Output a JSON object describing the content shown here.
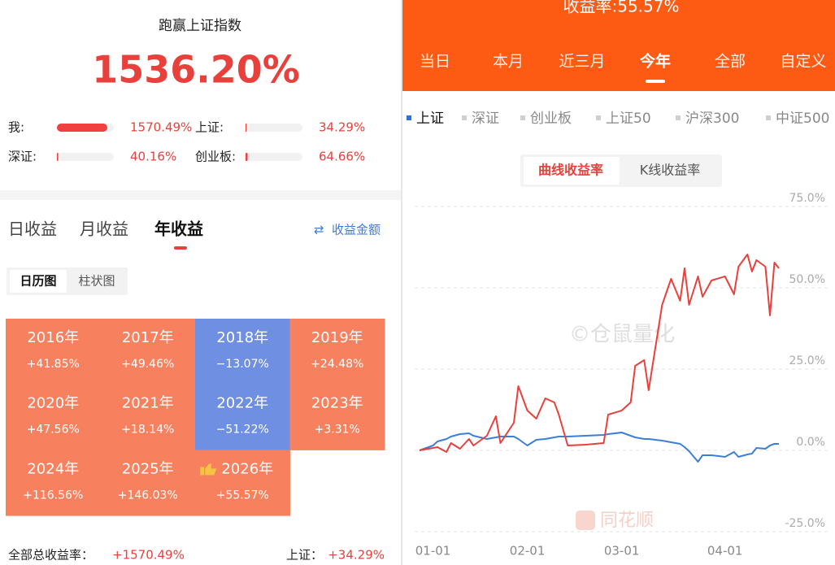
{
  "left": {
    "title": "跑赢上证指数",
    "excess": "1536.20%",
    "comparison": [
      {
        "label": "我:",
        "value": 1570.49,
        "value_label": "1570.49%"
      },
      {
        "label": "上证:",
        "value": 34.29,
        "value_label": "34.29%"
      },
      {
        "label": "深证:",
        "value": 40.16,
        "value_label": "40.16%"
      },
      {
        "label": "创业板:",
        "value": 64.66,
        "value_label": "64.66%"
      }
    ],
    "tabs": [
      "日收益",
      "月收益",
      "年收益"
    ],
    "active_tab": 2,
    "amount_link": "收益金额",
    "views": [
      "日历图",
      "柱状图"
    ],
    "active_view": 0,
    "years": [
      {
        "year": "2016年",
        "value": 41.85,
        "label": "+41.85%"
      },
      {
        "year": "2017年",
        "value": 49.46,
        "label": "+49.46%"
      },
      {
        "year": "2018年",
        "value": -13.07,
        "label": "−13.07%"
      },
      {
        "year": "2019年",
        "value": 24.48,
        "label": "+24.48%"
      },
      {
        "year": "2020年",
        "value": 47.56,
        "label": "+47.56%"
      },
      {
        "year": "2021年",
        "value": 18.14,
        "label": "+18.14%"
      },
      {
        "year": "2022年",
        "value": -51.22,
        "label": "−51.22%"
      },
      {
        "year": "2023年",
        "value": 3.31,
        "label": "+3.31%"
      },
      {
        "year": "2024年",
        "value": 116.56,
        "label": "+116.56%"
      },
      {
        "year": "2025年",
        "value": 146.03,
        "label": "+146.03%"
      },
      {
        "year": "2026年",
        "value": 55.57,
        "label": "+55.57%"
      }
    ],
    "footer": {
      "total_label": "全部总收益率：",
      "total": "+1570.49%",
      "index_label": "上证：",
      "index": "+34.29%"
    }
  },
  "right": {
    "header": "收益率:55.57%",
    "periods": [
      "当日",
      "本月",
      "近三月",
      "今年",
      "全部",
      "自定义"
    ],
    "active_period": 3,
    "indices": [
      "上证",
      "深证",
      "创业板",
      "上证50",
      "沪深300",
      "中证500"
    ],
    "active_index": 0,
    "modes": [
      "曲线收益率",
      "K线收益率"
    ],
    "active_mode": 0,
    "watermark": "©仓鼠量化",
    "logo": "同花顺"
  },
  "chart_data": {
    "type": "line",
    "x": [
      0,
      3,
      4,
      6,
      7,
      9,
      11,
      12,
      15,
      17,
      18,
      21,
      22,
      24,
      26,
      28,
      30,
      31,
      33,
      37,
      41,
      42,
      45,
      47,
      48,
      50,
      51,
      54,
      56,
      58,
      59,
      60,
      62,
      63,
      65,
      68,
      70,
      71,
      73,
      74,
      75,
      77,
      78,
      79,
      80
    ],
    "series": [
      {
        "color": "#e8413c",
        "values": [
          0,
          0.75,
          1,
          -0.5,
          2.25,
          0.5,
          3.5,
          1.5,
          4.5,
          10.5,
          2.25,
          8.5,
          19.75,
          12.25,
          9.75,
          16,
          14.75,
          11,
          1.5,
          1.75,
          2.25,
          11,
          12.25,
          14.75,
          26,
          27.75,
          18.5,
          44.75,
          52.75,
          46,
          56,
          44.75,
          53.5,
          47.25,
          52.25,
          53.5,
          48,
          56.5,
          60.25,
          55,
          58.5,
          56.5,
          41.5,
          57.75,
          56
        ]
      },
      {
        "color": "#3d7fd6",
        "values": [
          0,
          1.5,
          2.75,
          3.5,
          4.25,
          5,
          5.25,
          4.5,
          3.5,
          4,
          4.25,
          4.25,
          3.5,
          1.5,
          3.25,
          3.5,
          4,
          4.25,
          4.25,
          4.5,
          4.75,
          5,
          5.5,
          4.5,
          4,
          3.5,
          3.5,
          3,
          2.5,
          2,
          1,
          -0.25,
          -3.5,
          -1.5,
          -1.5,
          -2,
          -0.5,
          -2,
          -1.25,
          -1,
          0.75,
          0.5,
          1.5,
          2,
          2
        ]
      }
    ],
    "xlim": [
      0,
      80
    ],
    "xticks": [
      {
        "value": 3,
        "label": "01-01"
      },
      {
        "value": 24,
        "label": "02-01"
      },
      {
        "value": 45,
        "label": "03-01"
      },
      {
        "value": 68,
        "label": "04-01"
      }
    ],
    "ylim": [
      -26.5,
      80.5
    ],
    "yticks": [
      {
        "value": 75,
        "label": "75.0%"
      },
      {
        "value": 50,
        "label": "50.0%"
      },
      {
        "value": 25,
        "label": "25.0%"
      },
      {
        "value": 0,
        "label": "0.0%"
      },
      {
        "value": -25,
        "label": "-25.0%"
      }
    ],
    "grid": true
  }
}
